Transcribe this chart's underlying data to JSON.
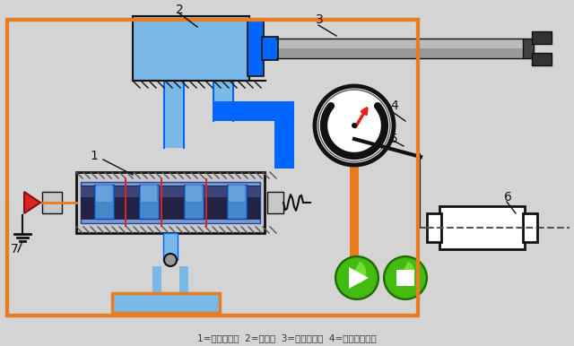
{
  "bg_color": "#d4d4d4",
  "caption": "1=电液伺服阀  2=液压缸  3=机械手手臂  4=步给步冬机构",
  "blue_light": "#7ab8e8",
  "blue_mid": "#3399ff",
  "blue_dark": "#1155cc",
  "blue_bright": "#0066ff",
  "orange": "#e87c1e",
  "gray_light": "#c8c8c8",
  "gray_mid": "#999999",
  "gray_dark": "#555555",
  "black": "#111111",
  "white": "#ffffff",
  "red": "#dd2222",
  "green_dark": "#2a8a00",
  "green_mid": "#44bb11",
  "green_light": "#88ee44"
}
